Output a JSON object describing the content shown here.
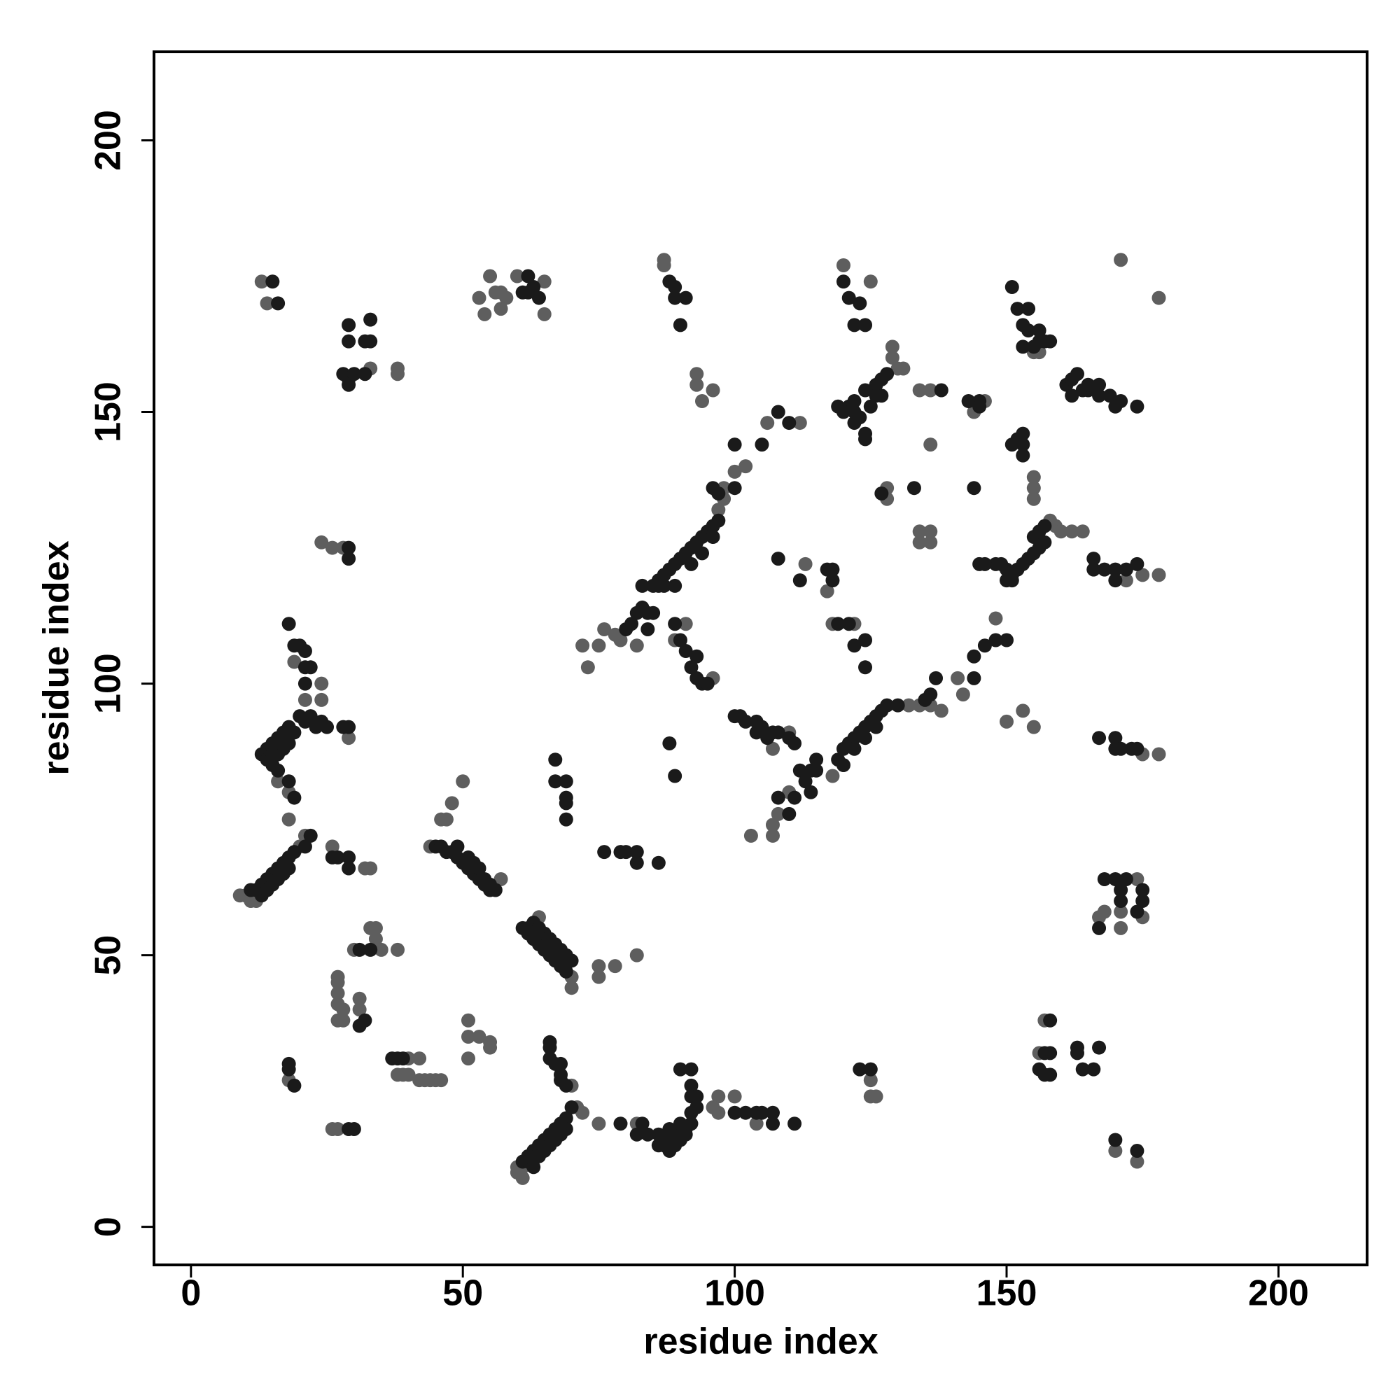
{
  "chart_data": {
    "type": "scatter",
    "xlabel": "residue index",
    "ylabel": "residue index",
    "xlim": [
      -6.8,
      216.3
    ],
    "ylim": [
      -7,
      216.3
    ],
    "xticks": [
      0,
      50,
      100,
      150,
      200
    ],
    "yticks": [
      0,
      50,
      100,
      150,
      200
    ],
    "series": [
      {
        "color": "#5e5e5e",
        "x": [
          13,
          14,
          38,
          38,
          33,
          55,
          56,
          57,
          58,
          60,
          65,
          53,
          54,
          57,
          65,
          87,
          87,
          93,
          93,
          94,
          96,
          120,
          125,
          129,
          130,
          131,
          129,
          134,
          136,
          136,
          144,
          146,
          155,
          156,
          155,
          155,
          155,
          128,
          128,
          134,
          136,
          134,
          136,
          158,
          159,
          160,
          162,
          164,
          171,
          178,
          175,
          178,
          172,
          97,
          98,
          98,
          100,
          102,
          106,
          112,
          79,
          78,
          72,
          75,
          76,
          73,
          82,
          113,
          117,
          118,
          122,
          89,
          91,
          96,
          132,
          134,
          136,
          138,
          141,
          142,
          148,
          118,
          110,
          108,
          107,
          107,
          103,
          107,
          110,
          153,
          155,
          150,
          175,
          178,
          168,
          167,
          171,
          175,
          171,
          174,
          157,
          156,
          170,
          174,
          125,
          126,
          125,
          18,
          16,
          18,
          19,
          24,
          21,
          24,
          29,
          21,
          20,
          9,
          10,
          11,
          12,
          26,
          32,
          33,
          24,
          26,
          28,
          46,
          48,
          50,
          47,
          44,
          57,
          70,
          70,
          64,
          75,
          75,
          78,
          82,
          30,
          33,
          34,
          34,
          35,
          38,
          27,
          27,
          27,
          27,
          28,
          27,
          28,
          31,
          31,
          18,
          38,
          39,
          40,
          42,
          43,
          44,
          45,
          46,
          40,
          42,
          51,
          51,
          53,
          55,
          55,
          51,
          70,
          71,
          72,
          60,
          60,
          61,
          61,
          75,
          82,
          97,
          100,
          97,
          96,
          104,
          26,
          27
        ],
        "y": [
          174,
          170,
          158,
          157,
          158,
          175,
          172,
          172,
          171,
          175,
          174,
          171,
          168,
          169,
          168,
          178,
          177,
          157,
          155,
          152,
          154,
          177,
          174,
          162,
          158,
          158,
          160,
          154,
          154,
          144,
          150,
          152,
          161,
          161,
          138,
          136,
          134,
          136,
          134,
          128,
          128,
          126,
          126,
          130,
          129,
          128,
          128,
          128,
          178,
          171,
          120,
          120,
          119,
          132,
          134,
          136,
          139,
          140,
          148,
          148,
          108,
          109,
          107,
          107,
          110,
          103,
          107,
          122,
          117,
          111,
          111,
          108,
          111,
          101,
          96,
          96,
          96,
          95,
          101,
          98,
          112,
          83,
          80,
          76,
          74,
          72,
          72,
          88,
          91,
          95,
          92,
          93,
          87,
          87,
          58,
          57,
          58,
          57,
          55,
          64,
          38,
          32,
          14,
          12,
          27,
          24,
          24,
          75,
          82,
          80,
          104,
          100,
          97,
          97,
          90,
          72,
          70,
          61,
          61,
          60,
          60,
          70,
          66,
          66,
          126,
          125,
          125,
          75,
          78,
          82,
          75,
          70,
          64,
          44,
          46,
          57,
          48,
          46,
          48,
          50,
          51,
          55,
          55,
          53,
          51,
          51,
          46,
          45,
          43,
          41,
          40,
          38,
          38,
          42,
          40,
          27,
          28,
          28,
          28,
          27,
          27,
          27,
          27,
          27,
          31,
          31,
          38,
          35,
          35,
          34,
          33,
          31,
          26,
          22,
          21,
          11,
          10,
          9,
          11,
          19,
          19,
          24,
          24,
          21,
          22,
          19,
          18,
          18
        ]
      },
      {
        "color": "#1a1a1a",
        "x": [
          15,
          16,
          29,
          29,
          33,
          32,
          33,
          28,
          29,
          29,
          30,
          32,
          61,
          62,
          63,
          64,
          62,
          88,
          89,
          89,
          91,
          90,
          120,
          121,
          123,
          122,
          124,
          128,
          127,
          126,
          124,
          122,
          121,
          120,
          122,
          123,
          122,
          124,
          124,
          119,
          127,
          125,
          126,
          138,
          143,
          145,
          145,
          144,
          151,
          152,
          154,
          153,
          154,
          156,
          153,
          155,
          156,
          157,
          158,
          161,
          162,
          163,
          164,
          162,
          165,
          165,
          167,
          167,
          169,
          170,
          171,
          174,
          151,
          152,
          153,
          153,
          153,
          133,
          127,
          155,
          156,
          157,
          157,
          156,
          155,
          154,
          153,
          152,
          151,
          150,
          149,
          148,
          151,
          150,
          145,
          146,
          166,
          168,
          170,
          172,
          174,
          170,
          166,
          85,
          86,
          87,
          88,
          89,
          90,
          91,
          92,
          93,
          94,
          95,
          96,
          97,
          96,
          97,
          100,
          100,
          105,
          110,
          108,
          86,
          87,
          89,
          92,
          94,
          96,
          83,
          83,
          84,
          82,
          85,
          84,
          81,
          80,
          108,
          117,
          118,
          118,
          112,
          119,
          121,
          124,
          122,
          124,
          89,
          90,
          91,
          92,
          93,
          93,
          94,
          95,
          120,
          121,
          122,
          123,
          124,
          125,
          126,
          127,
          128,
          130,
          135,
          136,
          137,
          144,
          144,
          146,
          148,
          150,
          119,
          120,
          122,
          124,
          126,
          100,
          101,
          102,
          104,
          105,
          104,
          106,
          107,
          108,
          110,
          111,
          112,
          114,
          115,
          115,
          113,
          114,
          111,
          108,
          110,
          167,
          170,
          171,
          173,
          174,
          170,
          168,
          170,
          172,
          175,
          175,
          174,
          171,
          171,
          167,
          158,
          157,
          158,
          156,
          157,
          158,
          163,
          163,
          164,
          167,
          166,
          170,
          174,
          123,
          125,
          18,
          19,
          20,
          21,
          21,
          22,
          21,
          20,
          21,
          22,
          23,
          24,
          25,
          28,
          29,
          18,
          17,
          16,
          15,
          14,
          13,
          14,
          15,
          16,
          18,
          19,
          16,
          17,
          18,
          15,
          17,
          19,
          22,
          21,
          19,
          18,
          17,
          16,
          15,
          14,
          13,
          12,
          11,
          13,
          14,
          15,
          16,
          17,
          18,
          26,
          27,
          29,
          29,
          29,
          29,
          45,
          46,
          47,
          48,
          49,
          50,
          51,
          52,
          53,
          54,
          55,
          56,
          49,
          51,
          52,
          53,
          54,
          55,
          61,
          62,
          63,
          64,
          65,
          66,
          67,
          68,
          69,
          63,
          65,
          66,
          67,
          68,
          69,
          70,
          62,
          64,
          67,
          67,
          69,
          69,
          69,
          69,
          76,
          79,
          80,
          82,
          82,
          86,
          88,
          89,
          31,
          33,
          31,
          32,
          18,
          18,
          19,
          29,
          30,
          37,
          38,
          39,
          66,
          66,
          66,
          67,
          68,
          68,
          68,
          69,
          70,
          69,
          68,
          67,
          66,
          65,
          64,
          63,
          62,
          61,
          62,
          63,
          64,
          65,
          66,
          67,
          68,
          69,
          79,
          83,
          82,
          84,
          86,
          87,
          88,
          88,
          89,
          89,
          90,
          91,
          91,
          92,
          90,
          90,
          92,
          92,
          92,
          93,
          92,
          93,
          100,
          102,
          104,
          105,
          107,
          107,
          111,
          86,
          88
        ],
        "y": [
          174,
          170,
          166,
          163,
          167,
          163,
          163,
          157,
          156,
          155,
          157,
          157,
          172,
          175,
          173,
          171,
          172,
          174,
          173,
          171,
          171,
          166,
          174,
          171,
          170,
          166,
          166,
          157,
          156,
          155,
          154,
          152,
          151,
          150,
          150,
          149,
          148,
          146,
          145,
          151,
          153,
          151,
          153,
          154,
          152,
          152,
          151,
          136,
          173,
          169,
          169,
          166,
          165,
          165,
          162,
          162,
          163,
          163,
          163,
          155,
          156,
          157,
          154,
          153,
          154,
          155,
          155,
          153,
          153,
          151,
          152,
          151,
          144,
          145,
          146,
          144,
          142,
          136,
          135,
          127,
          128,
          129,
          126,
          125,
          124,
          123,
          122,
          121,
          120,
          121,
          122,
          122,
          119,
          119,
          122,
          122,
          123,
          121,
          121,
          121,
          122,
          119,
          121,
          118,
          119,
          120,
          121,
          122,
          123,
          124,
          125,
          126,
          127,
          128,
          129,
          130,
          136,
          135,
          136,
          144,
          144,
          148,
          150,
          118,
          118,
          118,
          122,
          124,
          127,
          118,
          114,
          113,
          113,
          113,
          110,
          111,
          110,
          123,
          121,
          121,
          119,
          119,
          111,
          111,
          108,
          107,
          103,
          111,
          108,
          106,
          103,
          105,
          101,
          100,
          100,
          88,
          89,
          90,
          91,
          92,
          93,
          94,
          95,
          96,
          96,
          97,
          98,
          101,
          101,
          105,
          107,
          108,
          108,
          86,
          85,
          88,
          90,
          92,
          94,
          94,
          93,
          93,
          92,
          91,
          90,
          91,
          91,
          90,
          89,
          84,
          84,
          84,
          86,
          82,
          80,
          79,
          79,
          76,
          90,
          90,
          88,
          88,
          88,
          88,
          64,
          64,
          64,
          62,
          60,
          58,
          62,
          60,
          55,
          38,
          32,
          32,
          29,
          28,
          28,
          32,
          33,
          29,
          33,
          29,
          16,
          14,
          29,
          29,
          111,
          107,
          107,
          106,
          103,
          103,
          100,
          94,
          93,
          94,
          92,
          93,
          92,
          92,
          92,
          92,
          91,
          90,
          89,
          88,
          87,
          86,
          85,
          84,
          82,
          79,
          87,
          88,
          89,
          87,
          90,
          91,
          72,
          70,
          69,
          68,
          67,
          66,
          65,
          64,
          63,
          62,
          62,
          61,
          62,
          63,
          64,
          65,
          66,
          68,
          68,
          68,
          66,
          125,
          123,
          70,
          70,
          69,
          69,
          68,
          67,
          66,
          65,
          64,
          63,
          62,
          62,
          70,
          68,
          67,
          66,
          64,
          63,
          55,
          54,
          53,
          52,
          51,
          50,
          49,
          48,
          47,
          56,
          54,
          53,
          52,
          51,
          50,
          49,
          55,
          55,
          86,
          82,
          82,
          79,
          78,
          75,
          69,
          69,
          69,
          69,
          67,
          67,
          89,
          83,
          51,
          51,
          37,
          38,
          30,
          29,
          26,
          18,
          18,
          31,
          31,
          31,
          34,
          33,
          31,
          30,
          30,
          28,
          27,
          26,
          22,
          20,
          19,
          18,
          17,
          16,
          15,
          14,
          13,
          12,
          12,
          11,
          13,
          14,
          15,
          16,
          17,
          18,
          19,
          19,
          17,
          17,
          15,
          15,
          16,
          14,
          15,
          17,
          16,
          17,
          18,
          19,
          19,
          29,
          29,
          26,
          24,
          24,
          21,
          22,
          21,
          21,
          21,
          21,
          21,
          19,
          19,
          17,
          18
        ]
      }
    ]
  }
}
